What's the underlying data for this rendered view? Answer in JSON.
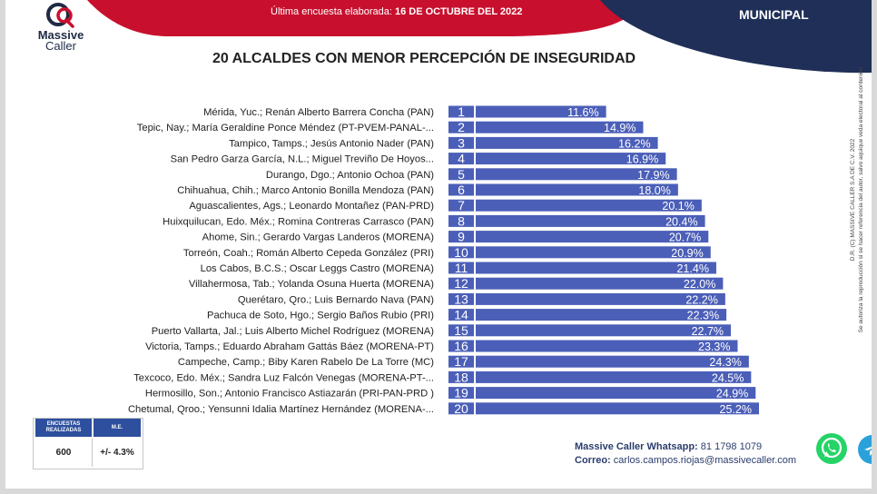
{
  "header": {
    "logo_line1": "Massive",
    "logo_line2": "Caller",
    "date_label": "Última encuesta elaborada:",
    "date_value": "16 DE OCTUBRE DEL 2022",
    "section": "MUNICIPAL"
  },
  "colors": {
    "bar": "#4b5fb8",
    "red": "#c8102e",
    "navy": "#1f2f57",
    "table_header": "#2d4f9e"
  },
  "chart_data": {
    "type": "bar",
    "orientation": "horizontal",
    "title": "20 ALCALDES CON MENOR PERCEPCIÓN DE INSEGURIDAD",
    "categories": [
      "Mérida, Yuc.; Renán Alberto Barrera Concha (PAN)",
      "Tepic, Nay.; María Geraldine Ponce Méndez (PT-PVEM-PANAL-...",
      "Tampico, Tamps.; Jesús Antonio Nader  (PAN)",
      "San Pedro Garza García, N.L.; Miguel Treviño De Hoyos...",
      "Durango, Dgo.; Antonio Ochoa (PAN)",
      "Chihuahua, Chih.; Marco Antonio Bonilla Mendoza (PAN)",
      "Aguascalientes, Ags.; Leonardo Montañez (PAN-PRD)",
      "Huixquilucan, Edo. Méx.; Romina Contreras Carrasco  (PAN)",
      "Ahome, Sin.; Gerardo Vargas Landeros (MORENA)",
      "Torreón, Coah.; Román Alberto Cepeda González  (PRI)",
      "Los Cabos, B.C.S.; Oscar Leggs Castro (MORENA)",
      "Villahermosa, Tab.; Yolanda Osuna Huerta (MORENA)",
      "Querétaro, Qro.; Luis Bernardo Nava (PAN)",
      "Pachuca de Soto, Hgo.; Sergio Baños Rubio (PRI)",
      "Puerto Vallarta, Jal.; Luis Alberto Michel Rodríguez (MORENA)",
      "Victoria, Tamps.; Eduardo Abraham Gattás Báez (MORENA-PT)",
      "Campeche, Camp.; Biby Karen Rabelo De La Torre (MC)",
      "Texcoco, Edo. Méx.; Sandra Luz Falcón Venegas (MORENA-PT-...",
      "Hermosillo, Son.; Antonio Francisco Astiazarán (PRI-PAN-PRD )",
      "Chetumal, Qroo.; Yensunni Idalia Martínez Hernández (MORENA-..."
    ],
    "ranks": [
      "1",
      "2",
      "3",
      "4",
      "5",
      "6",
      "7",
      "8",
      "9",
      "10",
      "11",
      "12",
      "13",
      "14",
      "15",
      "16",
      "17",
      "18",
      "19",
      "20"
    ],
    "values": [
      11.6,
      14.9,
      16.2,
      16.9,
      17.9,
      18.0,
      20.1,
      20.4,
      20.7,
      20.9,
      21.4,
      22.0,
      22.2,
      22.3,
      22.7,
      23.3,
      24.3,
      24.5,
      24.9,
      25.2
    ],
    "value_labels": [
      "11.6%",
      "14.9%",
      "16.2%",
      "16.9%",
      "17.9%",
      "18.0%",
      "20.1%",
      "20.4%",
      "20.7%",
      "20.9%",
      "21.4%",
      "22.0%",
      "22.2%",
      "22.3%",
      "22.7%",
      "23.3%",
      "24.3%",
      "24.5%",
      "24.9%",
      "25.2%"
    ],
    "xlim": [
      0,
      30
    ],
    "grid": false,
    "legend": "none"
  },
  "side_note": {
    "line1": "D.R. (C) MASSIVE CALLER S.A DE C.V. 2022",
    "line2": "Se autoriza la reproducción si se hacer referencia del autor, salvo aquique veda electoral al contenido"
  },
  "info_table": {
    "h1": "ENCUESTAS REALIZADAS",
    "h2": "M.E.",
    "v1": "600",
    "v2": "+/- 4.3%"
  },
  "contact": {
    "whatsapp_label": "Massive Caller Whatsapp:",
    "whatsapp_number": "81 1798 1079",
    "email_label": "Correo:",
    "email_value": "carlos.campos.riojas@massivecaller.com"
  },
  "icons": [
    "whatsapp-icon",
    "telegram-icon",
    "logo-mark"
  ]
}
